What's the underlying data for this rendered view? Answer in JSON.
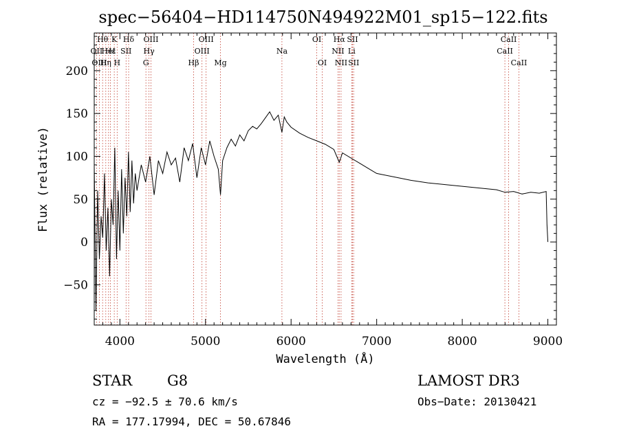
{
  "chart_data": {
    "type": "line",
    "title": "spec−56404−HD114750N494922M01_sp15−122.fits",
    "xlabel": "Wavelength (Å)",
    "ylabel": "Flux (relative)",
    "xlim": [
      3700,
      9100
    ],
    "ylim": [
      -97,
      244
    ],
    "x_ticks": [
      4000,
      5000,
      6000,
      7000,
      8000,
      9000
    ],
    "y_ticks": [
      -50,
      0,
      50,
      100,
      150,
      200
    ],
    "x_tick_labels": [
      "4000",
      "5000",
      "6000",
      "7000",
      "8000",
      "9000"
    ],
    "y_tick_labels": [
      "−50",
      "0",
      "50",
      "100",
      "150",
      "200"
    ],
    "series": [
      {
        "name": "spectrum",
        "x": [
          3700,
          3720,
          3740,
          3760,
          3780,
          3800,
          3820,
          3840,
          3860,
          3880,
          3900,
          3920,
          3940,
          3960,
          3980,
          4000,
          4020,
          4040,
          4060,
          4080,
          4100,
          4120,
          4140,
          4160,
          4180,
          4200,
          4250,
          4300,
          4350,
          4400,
          4450,
          4500,
          4550,
          4600,
          4650,
          4700,
          4750,
          4800,
          4850,
          4900,
          4950,
          5000,
          5050,
          5100,
          5150,
          5175,
          5200,
          5250,
          5300,
          5350,
          5400,
          5450,
          5500,
          5550,
          5600,
          5650,
          5700,
          5750,
          5800,
          5850,
          5893,
          5920,
          5950,
          6000,
          6100,
          6200,
          6300,
          6400,
          6500,
          6563,
          6600,
          6700,
          6800,
          6900,
          7000,
          7200,
          7400,
          7600,
          7800,
          8000,
          8200,
          8400,
          8500,
          8600,
          8700,
          8800,
          8900,
          8980,
          8990,
          9000
        ],
        "y": [
          90,
          -80,
          60,
          -20,
          30,
          5,
          80,
          -10,
          40,
          -40,
          50,
          20,
          110,
          -20,
          60,
          -10,
          85,
          10,
          75,
          30,
          105,
          35,
          95,
          45,
          80,
          60,
          90,
          70,
          100,
          55,
          95,
          80,
          105,
          90,
          98,
          70,
          110,
          95,
          115,
          75,
          110,
          90,
          118,
          100,
          85,
          55,
          95,
          110,
          120,
          112,
          125,
          118,
          130,
          135,
          132,
          138,
          145,
          152,
          142,
          148,
          128,
          146,
          140,
          134,
          127,
          122,
          118,
          114,
          108,
          93,
          104,
          98,
          92,
          86,
          80,
          76,
          72,
          69,
          67,
          65,
          63,
          61,
          58,
          59,
          56,
          58,
          57,
          59,
          20,
          0
        ]
      }
    ],
    "lines": [
      {
        "label": "Hθ",
        "x": 3798,
        "row": 1
      },
      {
        "label": "OII",
        "x": 3727,
        "row": 2
      },
      {
        "label": "OIII",
        "x": 3760,
        "row": 3
      },
      {
        "label": "Hε",
        "x": 3889,
        "row": 2
      },
      {
        "label": "Hη",
        "x": 3835,
        "row": 3
      },
      {
        "label": "K",
        "x": 3934,
        "row": 1
      },
      {
        "label": "HeI",
        "x": 3867,
        "row": 2
      },
      {
        "label": "H",
        "x": 3968,
        "row": 3
      },
      {
        "label": "Hδ",
        "x": 4102,
        "row": 1
      },
      {
        "label": "SII",
        "x": 4072,
        "row": 2
      },
      {
        "label": "OIII",
        "x": 4363,
        "row": 1
      },
      {
        "label": "Hγ",
        "x": 4340,
        "row": 2
      },
      {
        "label": "G",
        "x": 4304,
        "row": 3
      },
      {
        "label": "OIII",
        "x": 5007,
        "row": 1
      },
      {
        "label": "OIII",
        "x": 4959,
        "row": 2
      },
      {
        "label": "Hβ",
        "x": 4861,
        "row": 3
      },
      {
        "label": "Mg",
        "x": 5175,
        "row": 3
      },
      {
        "label": "Na",
        "x": 5893,
        "row": 2
      },
      {
        "label": "OI",
        "x": 6300,
        "row": 1
      },
      {
        "label": "OI",
        "x": 6364,
        "row": 3
      },
      {
        "label": "Hα",
        "x": 6563,
        "row": 1
      },
      {
        "label": "NII",
        "x": 6548,
        "row": 2
      },
      {
        "label": "NII",
        "x": 6584,
        "row": 3
      },
      {
        "label": "SII",
        "x": 6717,
        "row": 1
      },
      {
        "label": "Li",
        "x": 6708,
        "row": 2
      },
      {
        "label": "SII",
        "x": 6731,
        "row": 3
      },
      {
        "label": "CaII",
        "x": 8542,
        "row": 1
      },
      {
        "label": "CaII",
        "x": 8498,
        "row": 2
      },
      {
        "label": "CaII",
        "x": 8662,
        "row": 3
      }
    ]
  },
  "footer": {
    "class_label": "STAR",
    "subclass": "G8",
    "survey": "LAMOST DR3",
    "cz": "cz = −92.5 ± 70.6 km/s",
    "obs_date": "Obs−Date: 20130421",
    "coords": "RA = 177.17994, DEC =  50.67846"
  },
  "colors": {
    "line_marker": "#c0392b",
    "spectrum": "#000000",
    "axes": "#000000"
  }
}
